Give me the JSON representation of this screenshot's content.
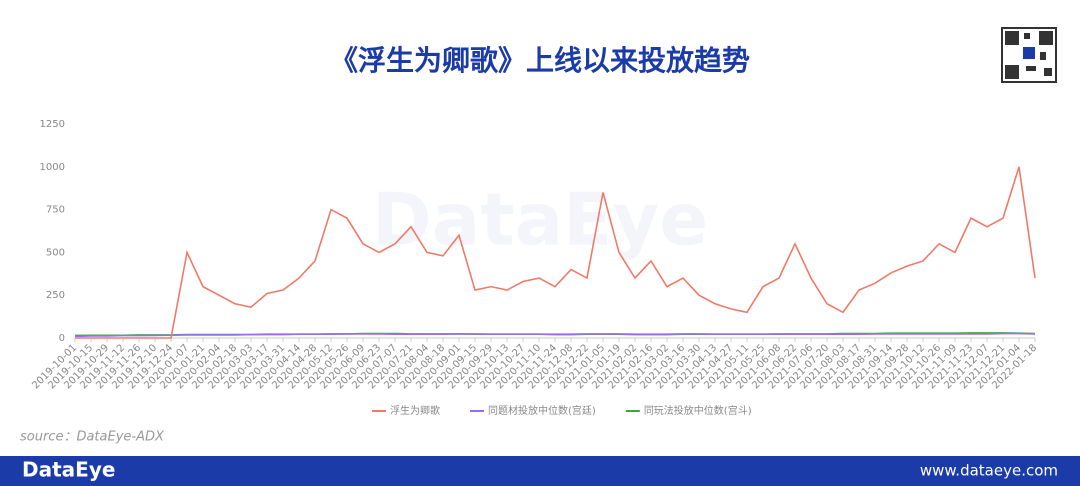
{
  "chart_data": {
    "type": "line",
    "title": "《浮生为卿歌》上线以来投放趋势",
    "watermark": "DataEye",
    "source": "source：DataEye-ADX",
    "categories": [
      "2019-10-01",
      "2019-10-15",
      "2019-10-29",
      "2019-11-12",
      "2019-11-26",
      "2019-12-10",
      "2019-12-24",
      "2020-01-07",
      "2020-01-21",
      "2020-02-04",
      "2020-02-18",
      "2020-03-03",
      "2020-03-17",
      "2020-03-31",
      "2020-04-14",
      "2020-04-28",
      "2020-05-12",
      "2020-05-26",
      "2020-06-09",
      "2020-06-23",
      "2020-07-07",
      "2020-07-21",
      "2020-08-04",
      "2020-08-18",
      "2020-09-01",
      "2020-09-15",
      "2020-09-29",
      "2020-10-13",
      "2020-10-27",
      "2020-11-10",
      "2020-11-24",
      "2020-12-08",
      "2020-12-22",
      "2021-01-05",
      "2021-01-19",
      "2021-02-02",
      "2021-02-16",
      "2021-03-02",
      "2021-03-16",
      "2021-03-30",
      "2021-04-13",
      "2021-04-27",
      "2021-05-11",
      "2021-05-25",
      "2021-06-08",
      "2021-06-22",
      "2021-07-06",
      "2021-07-20",
      "2021-08-03",
      "2021-08-17",
      "2021-08-31",
      "2021-09-14",
      "2021-09-28",
      "2021-10-12",
      "2021-10-26",
      "2021-11-09",
      "2021-11-23",
      "2021-12-07",
      "2021-12-21",
      "2022-01-04",
      "2022-01-18"
    ],
    "series": [
      {
        "name": "浮生为卿歌",
        "color": "#f07a68",
        "values": [
          0,
          0,
          0,
          0,
          0,
          0,
          0,
          500,
          300,
          250,
          200,
          180,
          260,
          280,
          350,
          450,
          750,
          700,
          550,
          500,
          550,
          650,
          500,
          480,
          600,
          280,
          300,
          280,
          330,
          350,
          300,
          400,
          350,
          850,
          500,
          350,
          450,
          300,
          350,
          250,
          200,
          170,
          150,
          300,
          350,
          550,
          350,
          200,
          150,
          280,
          320,
          380,
          420,
          450,
          550,
          500,
          700,
          650,
          700,
          1000,
          350
        ]
      },
      {
        "name": "同题材投放中位数(宫廷)",
        "color": "#9a6cf0",
        "values": [
          10,
          12,
          12,
          14,
          14,
          15,
          16,
          18,
          18,
          18,
          18,
          20,
          20,
          20,
          22,
          22,
          22,
          24,
          24,
          24,
          22,
          22,
          22,
          22,
          24,
          24,
          22,
          22,
          22,
          22,
          22,
          22,
          24,
          24,
          24,
          22,
          22,
          22,
          24,
          24,
          22,
          22,
          22,
          22,
          22,
          22,
          22,
          22,
          22,
          22,
          24,
          24,
          24,
          24,
          24,
          24,
          24,
          24,
          26,
          26,
          24
        ]
      },
      {
        "name": "同玩法投放中位数(宫斗)",
        "color": "#3aaa35",
        "values": [
          15,
          16,
          16,
          16,
          18,
          18,
          18,
          20,
          20,
          20,
          20,
          20,
          22,
          22,
          22,
          22,
          24,
          24,
          26,
          26,
          26,
          24,
          24,
          24,
          24,
          22,
          22,
          22,
          22,
          22,
          20,
          20,
          22,
          22,
          22,
          20,
          20,
          20,
          22,
          22,
          22,
          22,
          22,
          22,
          24,
          24,
          24,
          24,
          26,
          26,
          26,
          28,
          28,
          28,
          28,
          28,
          30,
          30,
          30,
          28,
          26
        ]
      }
    ],
    "ylim": [
      0,
      1250
    ],
    "yticks": [
      0,
      250,
      500,
      750,
      1000,
      1250
    ],
    "grid": false,
    "legend": "bottom"
  },
  "footer": {
    "brand": "DataEye",
    "url": "www.dataeye.com"
  }
}
